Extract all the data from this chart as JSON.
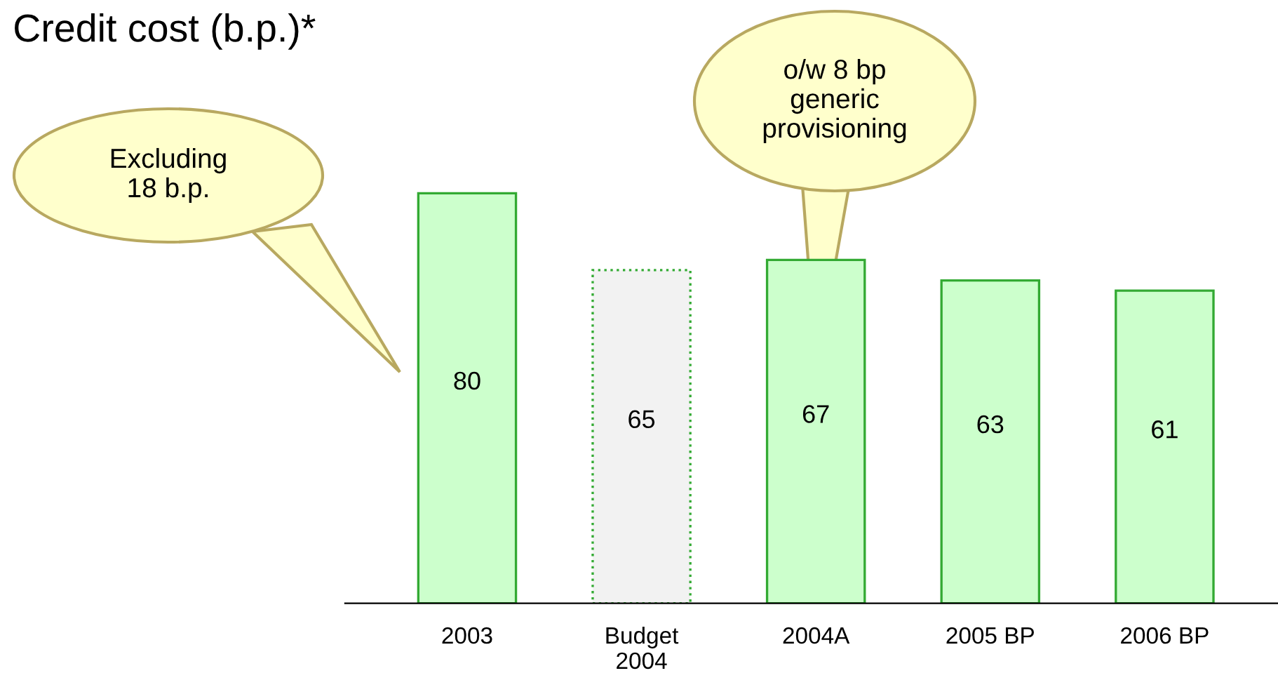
{
  "chart_data": {
    "type": "bar",
    "title": "Credit cost (b.p.)*",
    "categories": [
      "2003",
      "Budget\n2004",
      "2004A",
      "2005 BP",
      "2006 BP"
    ],
    "series": [
      {
        "values": [
          80,
          null,
          67,
          63,
          61
        ],
        "color": "#ccffcc"
      },
      {
        "values": [
          null,
          65,
          null,
          null,
          null
        ],
        "color": "#f2f2f2",
        "line_style": "dotted"
      }
    ],
    "data_labels": true,
    "grid": false,
    "legend": false,
    "annotations": [
      "Excluding\n18 b.p.",
      "o/w 8 bp\ngeneric\nprovisioning"
    ]
  }
}
